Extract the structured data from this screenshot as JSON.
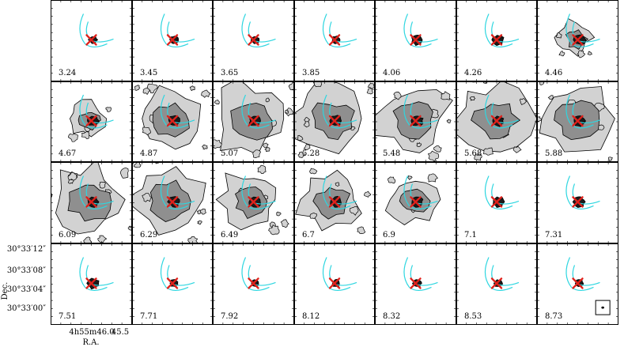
{
  "figure": {
    "channels": [
      "3.24",
      "3.45",
      "3.65",
      "3.85",
      "4.06",
      "4.26",
      "4.46",
      "4.67",
      "4.87",
      "5.07",
      "5.28",
      "5.48",
      "5.68",
      "5.88",
      "6.09",
      "6.29",
      "6.49",
      "6.7",
      "6.9",
      "7.1",
      "7.31",
      "7.51",
      "7.71",
      "7.92",
      "8.12",
      "8.32",
      "8.53",
      "8.73"
    ],
    "emission_levels": [
      0,
      0,
      0,
      0,
      1,
      1,
      2,
      2,
      4,
      5,
      5,
      5,
      5,
      5,
      5,
      5,
      4,
      4,
      3,
      1,
      1,
      1,
      0,
      0,
      0,
      0,
      0,
      0
    ],
    "dec_ticks": [
      "30°33′12″",
      "30°33′08″",
      "30°33′04″",
      "30°33′00″"
    ],
    "ra_ticks": [
      "4h55m46.0",
      "45.5"
    ],
    "ra_label": "R.A.",
    "dec_label": "Dec.",
    "colors": {
      "contour": "#000000",
      "fill_light": "#d2d2d2",
      "fill_mid": "#8f8f8f",
      "fill_dark": "#1a1a1a",
      "streamer": "#2ed6e0",
      "marker": "#e0201a"
    }
  }
}
